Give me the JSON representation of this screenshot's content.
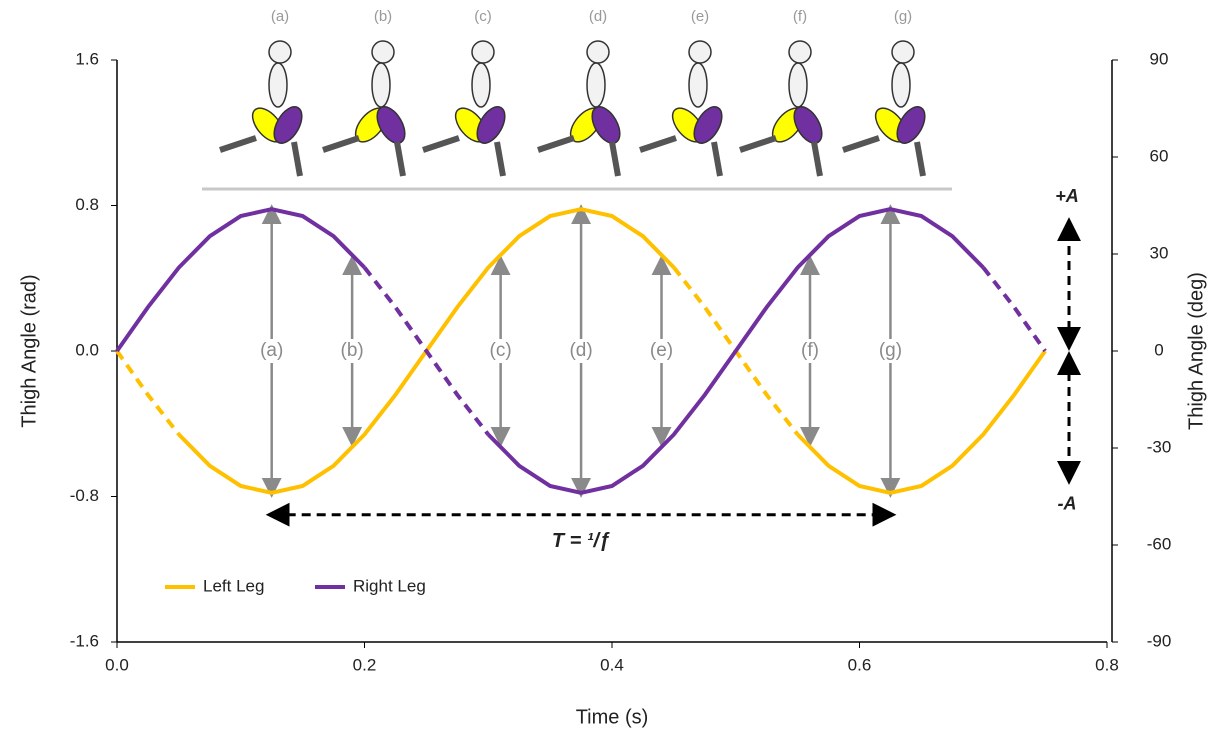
{
  "chart_data": {
    "type": "line",
    "x_label": "Time (s)",
    "y_label": "Thigh  Angle (rad)",
    "y2_label": "Thigh Angle (deg)",
    "xlim": [
      0,
      0.8
    ],
    "xticks": [
      {
        "value": 0,
        "label": "0.0"
      },
      0.2,
      0.4,
      0.6,
      0.8
    ],
    "ylim": [
      -1.6,
      1.6
    ],
    "yticks": [
      1.6,
      0.8,
      {
        "value": 0,
        "label": "0.0"
      },
      -0.8,
      -1.6
    ],
    "y2lim": [
      -90,
      90
    ],
    "y2ticks": [
      90,
      60,
      30,
      0,
      -30,
      -60,
      -90
    ],
    "grid": false,
    "legend": "lower left",
    "x": [
      0,
      0.025,
      0.05,
      0.075,
      0.1,
      0.125,
      0.15,
      0.175,
      0.2,
      0.225,
      0.25,
      0.275,
      0.3,
      0.325,
      0.35,
      0.375,
      0.4,
      0.425,
      0.45,
      0.475,
      0.5,
      0.525,
      0.55,
      0.575,
      0.6,
      0.625,
      0.65,
      0.675,
      0.7,
      0.725,
      0.75
    ],
    "series": [
      {
        "name": "Left Leg",
        "color": "#ffc000",
        "dashed_x": [
          [
            0,
            0.05
          ],
          [
            0.45,
            0.55
          ]
        ],
        "values": [
          0,
          -0.241,
          -0.459,
          -0.631,
          -0.742,
          -0.78,
          -0.742,
          -0.631,
          -0.459,
          -0.241,
          0,
          0.241,
          0.459,
          0.631,
          0.742,
          0.78,
          0.742,
          0.631,
          0.459,
          0.241,
          0,
          -0.241,
          -0.459,
          -0.631,
          -0.742,
          -0.78,
          -0.742,
          -0.631,
          -0.459,
          -0.241,
          0
        ]
      },
      {
        "name": "Right Leg",
        "color": "#7030a0",
        "dashed_x": [
          [
            0.2,
            0.3
          ],
          [
            0.7,
            0.75
          ]
        ],
        "values": [
          0,
          0.241,
          0.459,
          0.631,
          0.742,
          0.78,
          0.742,
          0.631,
          0.459,
          0.241,
          0,
          -0.241,
          -0.459,
          -0.631,
          -0.742,
          -0.78,
          -0.742,
          -0.631,
          -0.459,
          -0.241,
          0,
          0.241,
          0.459,
          0.631,
          0.742,
          0.78,
          0.742,
          0.631,
          0.459,
          0.241,
          0
        ]
      }
    ],
    "phases": [
      {
        "label": "(a)",
        "x": 0.125,
        "amplitude": 0.78
      },
      {
        "label": "(b)",
        "x": 0.19,
        "amplitude": 0.5
      },
      {
        "label": "(c)",
        "x": 0.31,
        "amplitude": 0.5
      },
      {
        "label": "(d)",
        "x": 0.375,
        "amplitude": 0.78
      },
      {
        "label": "(e)",
        "x": 0.44,
        "amplitude": 0.5
      },
      {
        "label": "(f)",
        "x": 0.56,
        "amplitude": 0.5
      },
      {
        "label": "(g)",
        "x": 0.625,
        "amplitude": 0.78
      }
    ],
    "period": {
      "label": "T = ¹/ƒ",
      "start": 0.125,
      "end": 0.625,
      "y": -0.9
    },
    "amplitude": {
      "plus_label": "+A",
      "minus_label": "-A",
      "value": 0.78
    }
  }
}
